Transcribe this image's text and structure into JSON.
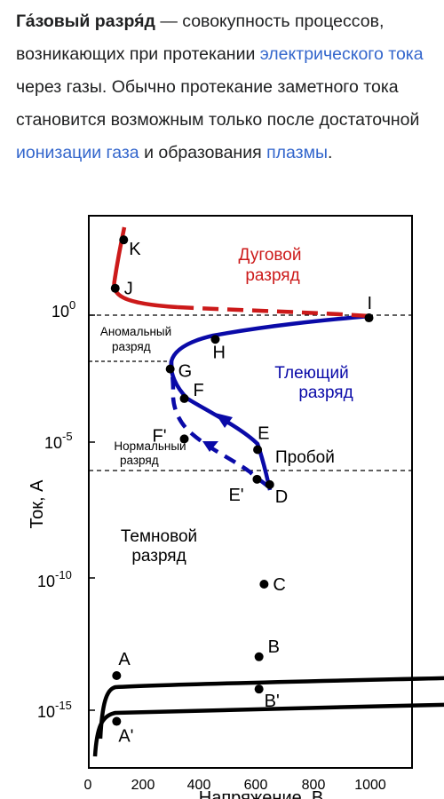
{
  "article": {
    "term": "Га́зовый разря́д",
    "dash": " — совокупность процессов, возникающих при протекании ",
    "link_current": "электрического тока",
    "text_2": " через газы. Обычно протекание заметного тока становится возможным только после достаточной ",
    "link_ionization": "ионизации газа",
    "text_3": " и образования ",
    "link_plasma": "плазмы",
    "text_4": "."
  },
  "chart_data": {
    "type": "line",
    "xlabel": "Напряжение, В",
    "ylabel": "Ток, А",
    "xlim": [
      0,
      1100
    ],
    "y_scale": "log",
    "ylim_exp": [
      -17.5,
      3.1
    ],
    "x_ticks": [
      "0",
      "200",
      "400",
      "600",
      "800",
      "1000"
    ],
    "y_ticks": [
      {
        "base": "10",
        "exp": "0"
      },
      {
        "base": "10",
        "exp": "-5"
      },
      {
        "base": "10",
        "exp": "-10"
      },
      {
        "base": "10",
        "exp": "-15"
      }
    ],
    "points": [
      {
        "label": "A",
        "x": 105,
        "log_i": -13.4
      },
      {
        "label": "A'",
        "x": 105,
        "log_i": -15.1
      },
      {
        "label": "B",
        "x": 610,
        "log_i": -12.7
      },
      {
        "label": "B'",
        "x": 610,
        "log_i": -13.9
      },
      {
        "label": "C",
        "x": 628,
        "log_i": -10.0
      },
      {
        "label": "D",
        "x": 648,
        "log_i": -6.3
      },
      {
        "label": "E",
        "x": 605,
        "log_i": -5.0
      },
      {
        "label": "E'",
        "x": 603,
        "log_i": -6.1
      },
      {
        "label": "F",
        "x": 345,
        "log_i": -3.1
      },
      {
        "label": "F'",
        "x": 345,
        "log_i": -4.6
      },
      {
        "label": "G",
        "x": 295,
        "log_i": -2.0
      },
      {
        "label": "H",
        "x": 455,
        "log_i": -0.9
      },
      {
        "label": "I",
        "x": 1000,
        "log_i": -0.1
      },
      {
        "label": "J",
        "x": 100,
        "log_i": 1.0
      },
      {
        "label": "K",
        "x": 130,
        "log_i": 2.8
      }
    ],
    "regions": {
      "arc": [
        "Дуговой",
        "разряд"
      ],
      "glow": [
        "Тлеющий",
        "разряд"
      ],
      "abnormal": [
        "Аномальный",
        "разряд"
      ],
      "normal": [
        "Нормальный",
        "разряд"
      ],
      "breakdown": "Пробой",
      "dark": [
        "Темновой",
        "разряд"
      ]
    },
    "colors": {
      "dark": "#000000",
      "glow": "#0a0aa8",
      "arc": "#cc1a1a"
    }
  }
}
